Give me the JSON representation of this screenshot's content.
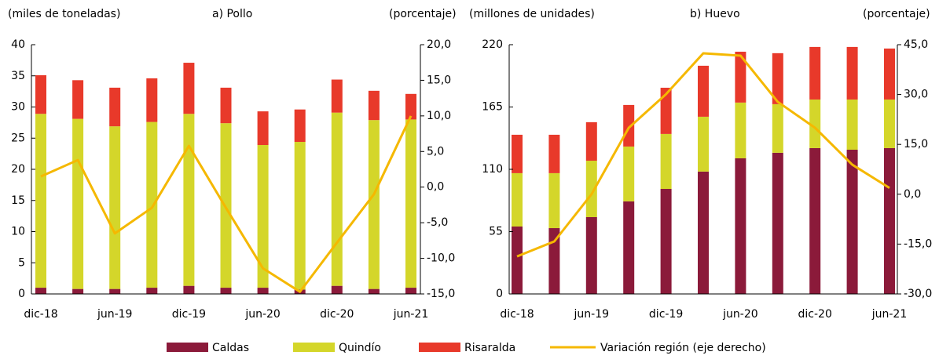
{
  "chart_data": [
    {
      "type": "bar",
      "title": "a) Pollo",
      "y_label": "(miles de toneladas)",
      "y2_label": "(porcentaje)",
      "categories": [
        "dic-18",
        null,
        "jun-19",
        null,
        "dic-19",
        null,
        "jun-20",
        null,
        "dic-20",
        null,
        "jun-21"
      ],
      "stacked": true,
      "series": [
        {
          "name": "Caldas",
          "color": "#8b1a3a",
          "values": [
            1.0,
            0.8,
            0.8,
            1.0,
            1.3,
            1.0,
            1.0,
            0.7,
            1.3,
            0.8,
            1.0
          ]
        },
        {
          "name": "Quindío",
          "color": "#d4d62a",
          "values": [
            27.9,
            27.3,
            26.1,
            26.6,
            27.6,
            26.4,
            22.9,
            23.7,
            27.8,
            27.1,
            27.0
          ]
        },
        {
          "name": "Risaralda",
          "color": "#e8392a",
          "values": [
            6.2,
            6.2,
            6.2,
            7.0,
            8.2,
            5.7,
            5.4,
            5.2,
            5.3,
            4.7,
            4.1
          ]
        },
        {
          "name": "Variación región (eje derecho)",
          "type": "line",
          "axis": "y2",
          "color": "#f5b800",
          "values": [
            1.5,
            3.8,
            -6.5,
            -2.9,
            5.8,
            -2.9,
            -11.4,
            -14.7,
            -7.8,
            -1.0,
            10.0
          ]
        }
      ],
      "ylim": [
        0,
        40
      ],
      "yticks": [
        0,
        5,
        10,
        15,
        20,
        25,
        30,
        35,
        40
      ],
      "y2lim": [
        -15,
        20
      ],
      "y2ticks": [
        {
          "value": -15,
          "label": "-15,0"
        },
        {
          "value": -10,
          "label": "-10,0"
        },
        {
          "value": -5,
          "label": "-5,0"
        },
        {
          "value": 0,
          "label": "0,0"
        },
        {
          "value": 5,
          "label": "5,0"
        },
        {
          "value": 10,
          "label": "10,0"
        },
        {
          "value": 15,
          "label": "15,0"
        },
        {
          "value": 20,
          "label": "20,0"
        }
      ],
      "grid": false
    },
    {
      "type": "bar",
      "title": "b) Huevo",
      "y_label": "(millones  de unidades)",
      "y2_label": "(porcentaje)",
      "categories": [
        "dic-18",
        null,
        "jun-19",
        null,
        "dic-19",
        null,
        "jun-20",
        null,
        "dic-20",
        null,
        "jun-21"
      ],
      "stacked": true,
      "series": [
        {
          "name": "Caldas",
          "color": "#8b1a3a",
          "values": [
            59.5,
            58.1,
            67.8,
            81.7,
            92.7,
            108.0,
            119.7,
            124.6,
            128.7,
            127.3,
            128.7
          ]
        },
        {
          "name": "Quindío",
          "color": "#d4d62a",
          "values": [
            47.1,
            48.5,
            49.8,
            48.4,
            48.5,
            48.4,
            49.2,
            42.9,
            42.9,
            44.3,
            42.9
          ]
        },
        {
          "name": "Risaralda",
          "color": "#e8392a",
          "values": [
            33.9,
            33.9,
            34.0,
            36.7,
            40.8,
            45.0,
            44.9,
            45.0,
            46.4,
            46.4,
            45.0
          ]
        },
        {
          "name": "Variación región (eje derecho)",
          "type": "line",
          "axis": "y2",
          "color": "#f5b800",
          "values": [
            -18.7,
            -14.2,
            0.0,
            20.0,
            30.1,
            42.4,
            41.7,
            27.8,
            20.0,
            8.9,
            1.9
          ]
        }
      ],
      "ylim": [
        0,
        220
      ],
      "yticks": [
        0,
        55,
        110,
        165,
        220
      ],
      "y2lim": [
        -30,
        45
      ],
      "y2ticks": [
        {
          "value": -30,
          "label": "-30,0"
        },
        {
          "value": -15,
          "label": "-15,0"
        },
        {
          "value": 0,
          "label": "0,0"
        },
        {
          "value": 15,
          "label": "15,0"
        },
        {
          "value": 30,
          "label": "30,0"
        },
        {
          "value": 45,
          "label": "45,0"
        }
      ],
      "grid": false
    }
  ]
}
